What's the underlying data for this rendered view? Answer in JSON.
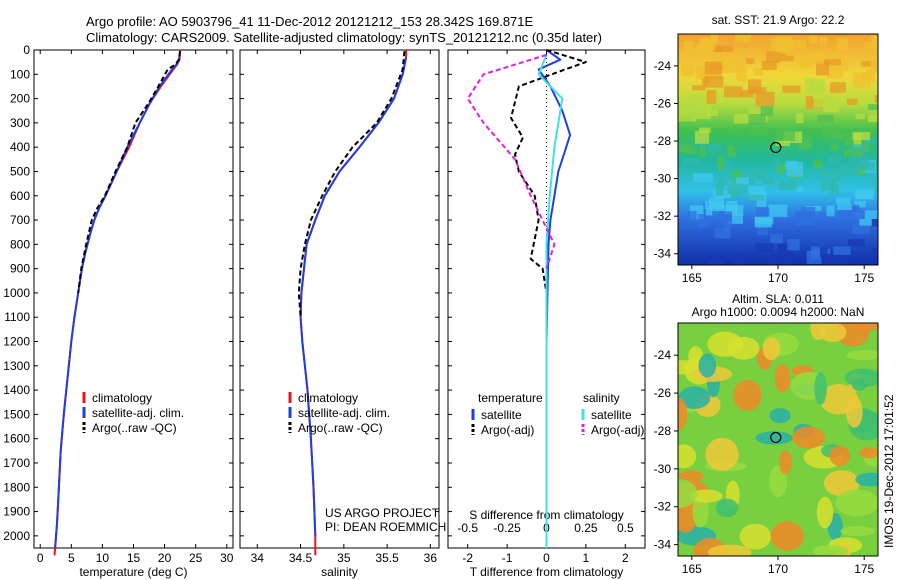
{
  "header": {
    "line1": "Argo profile: AO 5903796_41 11-Dec-2012 20121212_153 28.342S 169.871E",
    "line2": "Climatology: CARS2009. Satellite-adjusted climatology: synTS_20121212.nc (0.35d later)"
  },
  "colors": {
    "climatology": "#e8161a",
    "satellite": "#1f3fe0",
    "argo": "#000000",
    "salinity_satellite": "#3fe0e8",
    "salinity_argo": "#e020e0"
  },
  "chart_data": [
    {
      "type": "line",
      "panel": "temperature",
      "xlabel": "temperature (deg C)",
      "ylabel": "",
      "xlim": [
        -1,
        31
      ],
      "ylim": [
        2050,
        0
      ],
      "xticks": [
        0,
        5,
        10,
        15,
        20,
        25,
        30
      ],
      "yticks": [
        0,
        100,
        200,
        300,
        400,
        500,
        600,
        700,
        800,
        900,
        1000,
        1100,
        1200,
        1300,
        1400,
        1500,
        1600,
        1700,
        1800,
        1900,
        2000
      ],
      "legend": [
        "climatology",
        "satellite-adj. clim.",
        "Argo(..raw -QC)"
      ],
      "legend_position": "lower-middle",
      "series": [
        {
          "name": "climatology",
          "x": [
            22.5,
            22.4,
            22.0,
            21.4,
            19.4,
            17.6,
            16.0,
            14.3,
            12.3,
            10.5,
            9.5,
            8.7,
            8.0,
            7.3,
            6.7,
            6.1,
            5.5,
            5.0,
            4.6,
            4.2,
            3.8,
            3.3,
            3.0,
            2.7,
            2.4,
            2.3
          ],
          "y": [
            0,
            40,
            60,
            80,
            150,
            220,
            300,
            400,
            500,
            600,
            650,
            700,
            760,
            830,
            900,
            1000,
            1100,
            1200,
            1300,
            1400,
            1500,
            1650,
            1800,
            1950,
            2050,
            2080
          ]
        },
        {
          "name": "satellite-adj. clim.",
          "x": [
            22.4,
            22.3,
            21.9,
            21.2,
            19.2,
            17.6,
            16.0,
            14.0,
            12.3,
            10.5,
            9.5,
            8.7,
            8.0,
            7.3,
            6.7,
            6.1,
            5.5,
            5.0,
            4.6,
            4.2,
            3.8,
            3.3,
            3.0,
            2.7,
            2.4
          ],
          "y": [
            20,
            40,
            60,
            80,
            150,
            220,
            300,
            400,
            500,
            600,
            650,
            700,
            760,
            830,
            900,
            1000,
            1100,
            1200,
            1300,
            1400,
            1500,
            1650,
            1800,
            1950,
            2050
          ]
        },
        {
          "name": "Argo(..raw -QC)",
          "x": [
            22.5,
            22.3,
            21.7,
            20.5,
            19.0,
            17.4,
            15.3,
            14.0,
            12.1,
            10.4,
            9.2,
            8.3,
            7.4,
            6.6,
            6.1
          ],
          "y": [
            5,
            40,
            60,
            80,
            150,
            220,
            300,
            400,
            500,
            600,
            650,
            700,
            800,
            900,
            1000
          ]
        }
      ]
    },
    {
      "type": "line",
      "panel": "salinity",
      "xlabel": "salinity",
      "ylabel": "",
      "xlim": [
        33.8,
        36.1
      ],
      "ylim": [
        2050,
        0
      ],
      "xticks": [
        34,
        34.5,
        35,
        35.5,
        36
      ],
      "xtick_labels": [
        "34",
        "34.5",
        "35",
        "35.5",
        "36"
      ],
      "legend": [
        "climatology",
        "satellite-adj. clim.",
        "Argo(..raw -QC)"
      ],
      "legend_position": "lower-middle",
      "series": [
        {
          "name": "climatology",
          "x": [
            35.72,
            35.72,
            35.68,
            35.58,
            35.4,
            35.18,
            34.95,
            34.78,
            34.67,
            34.57,
            34.54,
            34.51,
            34.5,
            34.52,
            34.55,
            34.58,
            34.6,
            34.62,
            34.635,
            34.65,
            34.66,
            34.67,
            34.67
          ],
          "y": [
            0,
            30,
            100,
            200,
            300,
            400,
            500,
            600,
            700,
            800,
            900,
            1000,
            1100,
            1200,
            1300,
            1400,
            1500,
            1600,
            1700,
            1800,
            1900,
            2000,
            2080
          ]
        },
        {
          "name": "satellite-adj. clim.",
          "x": [
            35.72,
            35.68,
            35.58,
            35.4,
            35.18,
            34.95,
            34.78,
            34.67,
            34.57,
            34.54,
            34.51,
            34.5,
            34.52,
            34.55,
            34.58,
            34.6,
            34.62,
            34.635,
            34.65,
            34.66,
            34.67
          ],
          "y": [
            30,
            100,
            200,
            300,
            400,
            500,
            600,
            700,
            800,
            900,
            1000,
            1100,
            1200,
            1300,
            1400,
            1500,
            1600,
            1700,
            1800,
            1900,
            2000
          ]
        },
        {
          "name": "Argo(..raw -QC)",
          "x": [
            35.7,
            35.68,
            35.55,
            35.38,
            35.1,
            34.9,
            34.75,
            34.62,
            34.55,
            34.5,
            34.48,
            34.5
          ],
          "y": [
            5,
            80,
            200,
            300,
            400,
            500,
            600,
            700,
            800,
            900,
            1000,
            1100
          ]
        }
      ]
    },
    {
      "type": "line",
      "panel": "differences",
      "xlabel": "T difference from climatology",
      "xlabel_top": "S difference from climatology",
      "xlim": [
        -2.5,
        2.5
      ],
      "ylim": [
        2050,
        0
      ],
      "xticks": [
        -2,
        -1,
        0,
        1,
        2
      ],
      "xtick_labels": [
        "-2",
        "-1",
        "0",
        "1",
        "2"
      ],
      "top_ticks": [
        -0.5,
        -0.25,
        0,
        0.25,
        0.5
      ],
      "top_tick_labels": [
        "-0.5",
        "-0.25",
        "0",
        "0.25",
        "0.5"
      ],
      "legend": [
        "temperature",
        "salinity",
        "satellite",
        "Argo(-adj)",
        "satellite",
        "Argo(-adj)"
      ],
      "legend_position": "lower-middle",
      "series": [
        {
          "name": "satellite",
          "group": "temperature",
          "x": [
            0,
            0.35,
            -0.2,
            0.1,
            0.4,
            0.6,
            0.5,
            0.3,
            0.2,
            0.1,
            0.05,
            0,
            0,
            0
          ],
          "y": [
            0,
            40,
            80,
            150,
            250,
            350,
            400,
            500,
            600,
            700,
            800,
            1200,
            1600,
            2050
          ]
        },
        {
          "name": "Argo(-adj)",
          "group": "temperature",
          "x": [
            0,
            1.0,
            0.3,
            -0.7,
            -0.9,
            -0.6,
            -0.8,
            -0.7,
            -0.3,
            -0.2,
            -0.4,
            -0.1,
            0
          ],
          "y": [
            0,
            50,
            90,
            150,
            280,
            360,
            430,
            500,
            600,
            700,
            860,
            900,
            1000
          ]
        },
        {
          "name": "satellite",
          "group": "salinity",
          "x": [
            0,
            -0.05,
            0.1,
            0.05,
            0.02,
            0,
            0,
            0
          ],
          "y": [
            20,
            100,
            200,
            400,
            600,
            800,
            1200,
            2050
          ]
        },
        {
          "name": "Argo(-adj)",
          "group": "salinity",
          "x": [
            0,
            -0.4,
            -0.5,
            -0.4,
            -0.2,
            -0.1,
            0.05,
            0
          ],
          "y": [
            20,
            100,
            200,
            300,
            450,
            600,
            800,
            900
          ]
        }
      ]
    },
    {
      "type": "heatmap",
      "panel": "sst_map",
      "title": "sat. SST: 21.9 Argo: 22.2",
      "xticks": [
        165,
        170,
        175
      ],
      "yticks": [
        -24,
        -26,
        -28,
        -30,
        -32,
        -34
      ],
      "xlim": [
        164.2,
        175.8
      ],
      "ylim": [
        -34.6,
        -22.3
      ],
      "argo_position": {
        "lon": 169.871,
        "lat": -28.342
      }
    },
    {
      "type": "heatmap",
      "panel": "sla_map",
      "title": "Altim. SLA: 0.011",
      "subtitle": "Argo h1000: 0.0094 h2000: NaN",
      "xticks": [
        165,
        170,
        175
      ],
      "yticks": [
        -24,
        -26,
        -28,
        -30,
        -32,
        -34
      ],
      "xlim": [
        164.2,
        175.8
      ],
      "ylim": [
        -34.6,
        -22.3
      ],
      "argo_position": {
        "lon": 169.871,
        "lat": -28.342
      }
    }
  ],
  "credits": {
    "project": "US ARGO PROJECT",
    "pi": "PI: DEAN ROEMMICH",
    "stamp": "IMOS 19-Dec-2012 17:01:52"
  }
}
